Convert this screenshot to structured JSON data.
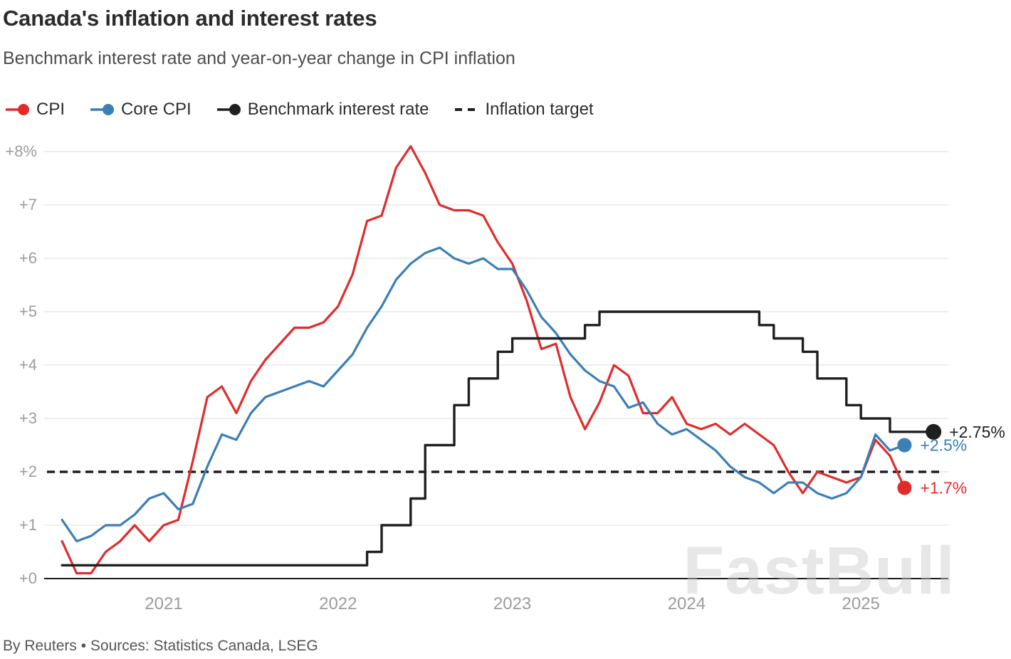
{
  "header": {
    "title": "Canada's inflation and interest rates",
    "subtitle": "Benchmark interest rate and year-on-year change in CPI inflation"
  },
  "legend": {
    "items": [
      {
        "label": "CPI",
        "color": "#e12b2b",
        "marker": "line-dot"
      },
      {
        "label": "Core CPI",
        "color": "#3a7fb5",
        "marker": "line-dot"
      },
      {
        "label": "Benchmark interest rate",
        "color": "#1f1f1f",
        "marker": "line-dot"
      },
      {
        "label": "Inflation target",
        "color": "#1f1f1f",
        "marker": "dashed"
      }
    ]
  },
  "watermark": "FastBull",
  "footer": {
    "credit": "By Reuters • Sources: Statistics Canada, LSEG"
  },
  "chart_data": {
    "type": "line",
    "title": "Canada's inflation and interest rates",
    "subtitle": "Benchmark interest rate and year-on-year change in CPI inflation",
    "x_unit": "month",
    "ylim": [
      0,
      8
    ],
    "grid": true,
    "legend_position": "top-left",
    "inflation_target": 2,
    "y_ticks": [
      {
        "value": 0,
        "label": "+0"
      },
      {
        "value": 1,
        "label": "+1"
      },
      {
        "value": 2,
        "label": "+2"
      },
      {
        "value": 3,
        "label": "+3"
      },
      {
        "value": 4,
        "label": "+4"
      },
      {
        "value": 5,
        "label": "+5"
      },
      {
        "value": 6,
        "label": "+6"
      },
      {
        "value": 7,
        "label": "+7"
      },
      {
        "value": 8,
        "label": "+8%"
      }
    ],
    "x_ticks": [
      {
        "label": "2021",
        "month_index": 7
      },
      {
        "label": "2022",
        "month_index": 19
      },
      {
        "label": "2023",
        "month_index": 31
      },
      {
        "label": "2024",
        "month_index": 43
      },
      {
        "label": "2025",
        "month_index": 55
      }
    ],
    "series": [
      {
        "name": "CPI",
        "color": "#e12b2b",
        "style": "line",
        "width": 3.2,
        "values": [
          0.7,
          0.1,
          0.1,
          0.5,
          0.7,
          1.0,
          0.7,
          1.0,
          1.1,
          2.2,
          3.4,
          3.6,
          3.1,
          3.7,
          4.1,
          4.4,
          4.7,
          4.7,
          4.8,
          5.1,
          5.7,
          6.7,
          6.8,
          7.7,
          8.1,
          7.6,
          7.0,
          6.9,
          6.9,
          6.8,
          6.3,
          5.9,
          5.2,
          4.3,
          4.4,
          3.4,
          2.8,
          3.3,
          4.0,
          3.8,
          3.1,
          3.1,
          3.4,
          2.9,
          2.8,
          2.9,
          2.7,
          2.9,
          2.7,
          2.5,
          2.0,
          1.6,
          2.0,
          1.9,
          1.8,
          1.9,
          2.6,
          2.3,
          1.7
        ]
      },
      {
        "name": "Core CPI",
        "color": "#3a7fb5",
        "style": "line",
        "width": 3.2,
        "values": [
          1.1,
          0.7,
          0.8,
          1.0,
          1.0,
          1.2,
          1.5,
          1.6,
          1.3,
          1.4,
          2.1,
          2.7,
          2.6,
          3.1,
          3.4,
          3.5,
          3.6,
          3.7,
          3.6,
          3.9,
          4.2,
          4.7,
          5.1,
          5.6,
          5.9,
          6.1,
          6.2,
          6.0,
          5.9,
          6.0,
          5.8,
          5.8,
          5.4,
          4.9,
          4.6,
          4.2,
          3.9,
          3.7,
          3.6,
          3.2,
          3.3,
          2.9,
          2.7,
          2.8,
          2.6,
          2.4,
          2.1,
          1.9,
          1.8,
          1.6,
          1.8,
          1.8,
          1.6,
          1.5,
          1.6,
          1.9,
          2.7,
          2.4,
          2.5
        ]
      },
      {
        "name": "Benchmark interest rate",
        "color": "#1f1f1f",
        "style": "step",
        "width": 3.4,
        "values": [
          0.25,
          0.25,
          0.25,
          0.25,
          0.25,
          0.25,
          0.25,
          0.25,
          0.25,
          0.25,
          0.25,
          0.25,
          0.25,
          0.25,
          0.25,
          0.25,
          0.25,
          0.25,
          0.25,
          0.25,
          0.25,
          0.5,
          1.0,
          1.0,
          1.5,
          2.5,
          2.5,
          3.25,
          3.75,
          3.75,
          4.25,
          4.5,
          4.5,
          4.5,
          4.5,
          4.5,
          4.75,
          5.0,
          5.0,
          5.0,
          5.0,
          5.0,
          5.0,
          5.0,
          5.0,
          5.0,
          5.0,
          5.0,
          4.75,
          4.5,
          4.5,
          4.25,
          3.75,
          3.75,
          3.25,
          3.0,
          3.0,
          2.75,
          2.75,
          2.75,
          2.75
        ]
      }
    ],
    "end_markers": [
      {
        "name": "Benchmark interest rate",
        "label": "+2.75%",
        "value": 2.75,
        "month_index": 60,
        "color": "#1f1f1f",
        "r": 11
      },
      {
        "name": "Core CPI",
        "label": "+2.5%",
        "value": 2.5,
        "month_index": 58,
        "color": "#3a7fb5",
        "r": 10
      },
      {
        "name": "CPI",
        "label": "+1.7%",
        "value": 1.7,
        "month_index": 58,
        "color": "#e12b2b",
        "r": 10
      }
    ]
  }
}
